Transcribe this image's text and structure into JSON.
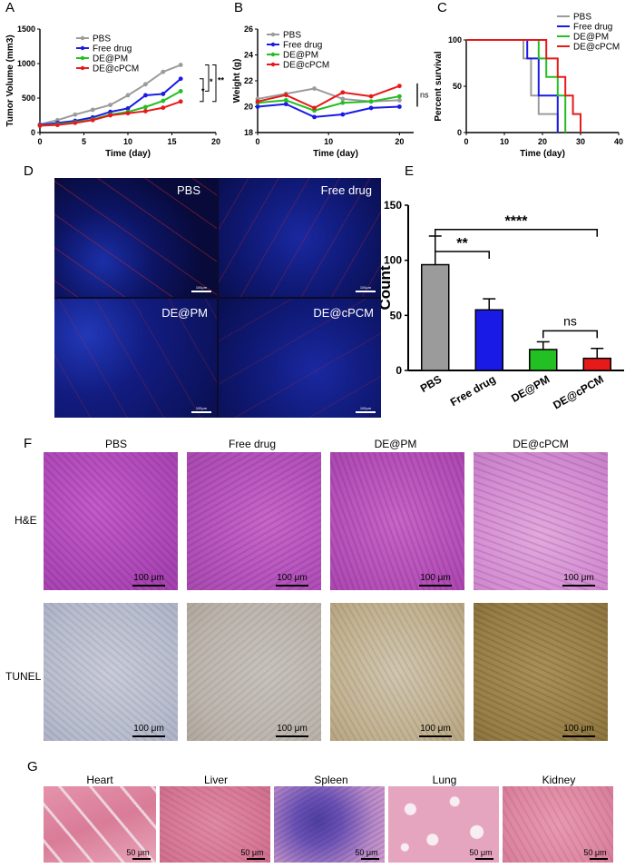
{
  "panels": {
    "A": "A",
    "B": "B",
    "C": "C",
    "D": "D",
    "E": "E",
    "F": "F",
    "G": "G"
  },
  "legend_groups": [
    "PBS",
    "Free drug",
    "DE@PM",
    "DE@cPCM"
  ],
  "colors": {
    "PBS": "#9b9b9b",
    "Free drug": "#1a1ae6",
    "DE@PM": "#22c022",
    "DE@cPCM": "#e61a1a"
  },
  "chart_data": [
    {
      "id": "A",
      "type": "line",
      "xlabel": "Time (day)",
      "ylabel": "Tumor Volume (mm3)",
      "xlim": [
        0,
        20
      ],
      "ylim": [
        0,
        1500
      ],
      "xticks": [
        0,
        5,
        10,
        15,
        20
      ],
      "yticks": [
        0,
        500,
        1000,
        1500
      ],
      "legend": "top-left",
      "series": [
        {
          "name": "PBS",
          "x": [
            0,
            2,
            4,
            6,
            8,
            10,
            12,
            14,
            16
          ],
          "y": [
            120,
            180,
            260,
            330,
            400,
            540,
            700,
            880,
            980
          ]
        },
        {
          "name": "Free drug",
          "x": [
            0,
            2,
            4,
            6,
            8,
            10,
            12,
            14,
            16
          ],
          "y": [
            110,
            140,
            170,
            220,
            300,
            350,
            540,
            560,
            780
          ]
        },
        {
          "name": "DE@PM",
          "x": [
            0,
            2,
            4,
            6,
            8,
            10,
            12,
            14,
            16
          ],
          "y": [
            100,
            120,
            150,
            190,
            260,
            300,
            370,
            460,
            600
          ]
        },
        {
          "name": "DE@cPCM",
          "x": [
            0,
            2,
            4,
            6,
            8,
            10,
            12,
            14,
            16
          ],
          "y": [
            100,
            110,
            140,
            180,
            250,
            280,
            310,
            360,
            450
          ]
        }
      ],
      "annotations": [
        "**",
        "*",
        "*"
      ]
    },
    {
      "id": "B",
      "type": "line",
      "xlabel": "Time (day)",
      "ylabel": "Weight (g)",
      "xlim": [
        0,
        22
      ],
      "ylim": [
        18,
        26
      ],
      "xticks": [
        0,
        10,
        20
      ],
      "yticks": [
        18,
        20,
        22,
        24,
        26
      ],
      "legend": "top-left",
      "series": [
        {
          "name": "PBS",
          "x": [
            0,
            4,
            8,
            12,
            16,
            20
          ],
          "y": [
            20.6,
            21.0,
            21.4,
            20.6,
            20.4,
            20.5
          ]
        },
        {
          "name": "Free drug",
          "x": [
            0,
            4,
            8,
            12,
            16,
            20
          ],
          "y": [
            20.0,
            20.2,
            19.2,
            19.4,
            19.9,
            20.0
          ]
        },
        {
          "name": "DE@PM",
          "x": [
            0,
            4,
            8,
            12,
            16,
            20
          ],
          "y": [
            20.3,
            20.5,
            19.7,
            20.3,
            20.4,
            20.8
          ]
        },
        {
          "name": "DE@cPCM",
          "x": [
            0,
            4,
            8,
            12,
            16,
            20
          ],
          "y": [
            20.4,
            20.9,
            19.9,
            21.1,
            20.8,
            21.6
          ]
        }
      ],
      "annotations": [
        "ns"
      ]
    },
    {
      "id": "C",
      "type": "line",
      "xlabel": "Time (day)",
      "ylabel": "Percent survival",
      "xlim": [
        0,
        40
      ],
      "ylim": [
        0,
        100
      ],
      "xticks": [
        0,
        10,
        20,
        30,
        40
      ],
      "yticks": [
        0,
        50,
        100
      ],
      "legend": "top-right",
      "series": [
        {
          "name": "PBS",
          "x": [
            0,
            15,
            15,
            17,
            17,
            19,
            19,
            24,
            24
          ],
          "y": [
            100,
            100,
            80,
            80,
            40,
            40,
            20,
            20,
            0
          ]
        },
        {
          "name": "Free drug",
          "x": [
            0,
            16,
            16,
            19,
            19,
            24,
            24
          ],
          "y": [
            100,
            100,
            80,
            80,
            40,
            40,
            0
          ]
        },
        {
          "name": "DE@PM",
          "x": [
            0,
            19,
            19,
            21,
            21,
            24,
            24,
            26,
            26
          ],
          "y": [
            100,
            100,
            80,
            80,
            60,
            60,
            40,
            40,
            0
          ]
        },
        {
          "name": "DE@cPCM",
          "x": [
            0,
            21,
            21,
            24,
            24,
            26,
            26,
            28,
            28,
            30,
            30
          ],
          "y": [
            100,
            100,
            80,
            80,
            60,
            60,
            40,
            40,
            20,
            20,
            0
          ]
        }
      ]
    },
    {
      "id": "E",
      "type": "bar",
      "ylabel": "Count",
      "ylim": [
        0,
        150
      ],
      "yticks": [
        0,
        50,
        100,
        150
      ],
      "categories": [
        "PBS",
        "Free drug",
        "DE@PM",
        "DE@cPCM"
      ],
      "values": [
        96,
        55,
        19,
        11
      ],
      "errors": [
        26,
        10,
        7,
        9
      ],
      "annotations": [
        "****",
        "**",
        "ns"
      ]
    }
  ],
  "panel_D": {
    "captions": [
      "PBS",
      "Free drug",
      "DE@PM",
      "DE@cPCM"
    ],
    "scale": "100μm"
  },
  "panel_F": {
    "columns": [
      "PBS",
      "Free drug",
      "DE@PM",
      "DE@cPCM"
    ],
    "rows": [
      "H&E",
      "TUNEL"
    ],
    "scale": "100 μm"
  },
  "panel_G": {
    "organs": [
      "Heart",
      "Liver",
      "Spleen",
      "Lung",
      "Kidney"
    ],
    "scale": "50 μm"
  }
}
